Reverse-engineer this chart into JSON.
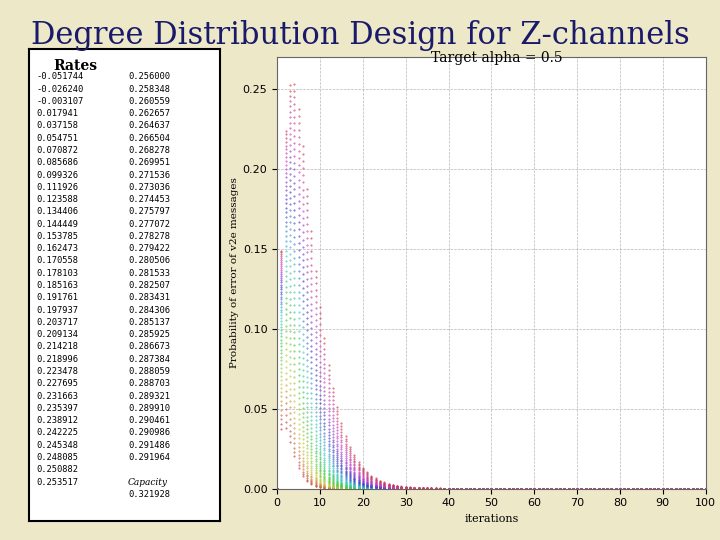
{
  "title": "Degree Distribution Design for Z-channels",
  "subtitle": "Target alpha = 0.5",
  "ylabel": "Probability of error of v2e messages",
  "xlabel": "iterations",
  "bg_color": "#ede8c8",
  "plot_bg_color": "#ffffff",
  "xlim": [
    0,
    100
  ],
  "ylim": [
    0,
    0.27
  ],
  "yticks": [
    0,
    0.05,
    0.1,
    0.15,
    0.2,
    0.25
  ],
  "xticks": [
    0,
    10,
    20,
    30,
    40,
    50,
    60,
    70,
    80,
    90,
    100
  ],
  "rates_col1": [
    -0.051744,
    -0.02624,
    -0.003107,
    0.017941,
    0.037158,
    0.054751,
    0.070872,
    0.085686,
    0.099326,
    0.111926,
    0.123588,
    0.134406,
    0.144449,
    0.153785,
    0.162473,
    0.170558,
    0.178103,
    0.185163,
    0.191761,
    0.197937,
    0.203717,
    0.209134,
    0.214218,
    0.218996,
    0.223478,
    0.227695,
    0.231663,
    0.235397,
    0.238912,
    0.242225,
    0.245348,
    0.248085,
    0.250882,
    0.253517
  ],
  "rates_col2": [
    0.256,
    0.258348,
    0.260559,
    0.262657,
    0.264637,
    0.266504,
    0.268278,
    0.269951,
    0.271536,
    0.273036,
    0.274453,
    0.275797,
    0.277072,
    0.278278,
    0.279422,
    0.280506,
    0.281533,
    0.282507,
    0.283431,
    0.284306,
    0.285137,
    0.285925,
    0.286673,
    0.287384,
    0.288059,
    0.288703,
    0.289321,
    0.28991,
    0.290461,
    0.290986,
    0.291486,
    0.291964
  ],
  "capacity_label": "Capacity",
  "capacity_value": 0.321928,
  "n_curves": 60,
  "n_iterations": 100,
  "table_box_color": "#000000",
  "table_bg_color": "#ffffff",
  "title_color": "#1a1a6a",
  "title_fontsize": 22,
  "line_color_under_title": "#444466"
}
